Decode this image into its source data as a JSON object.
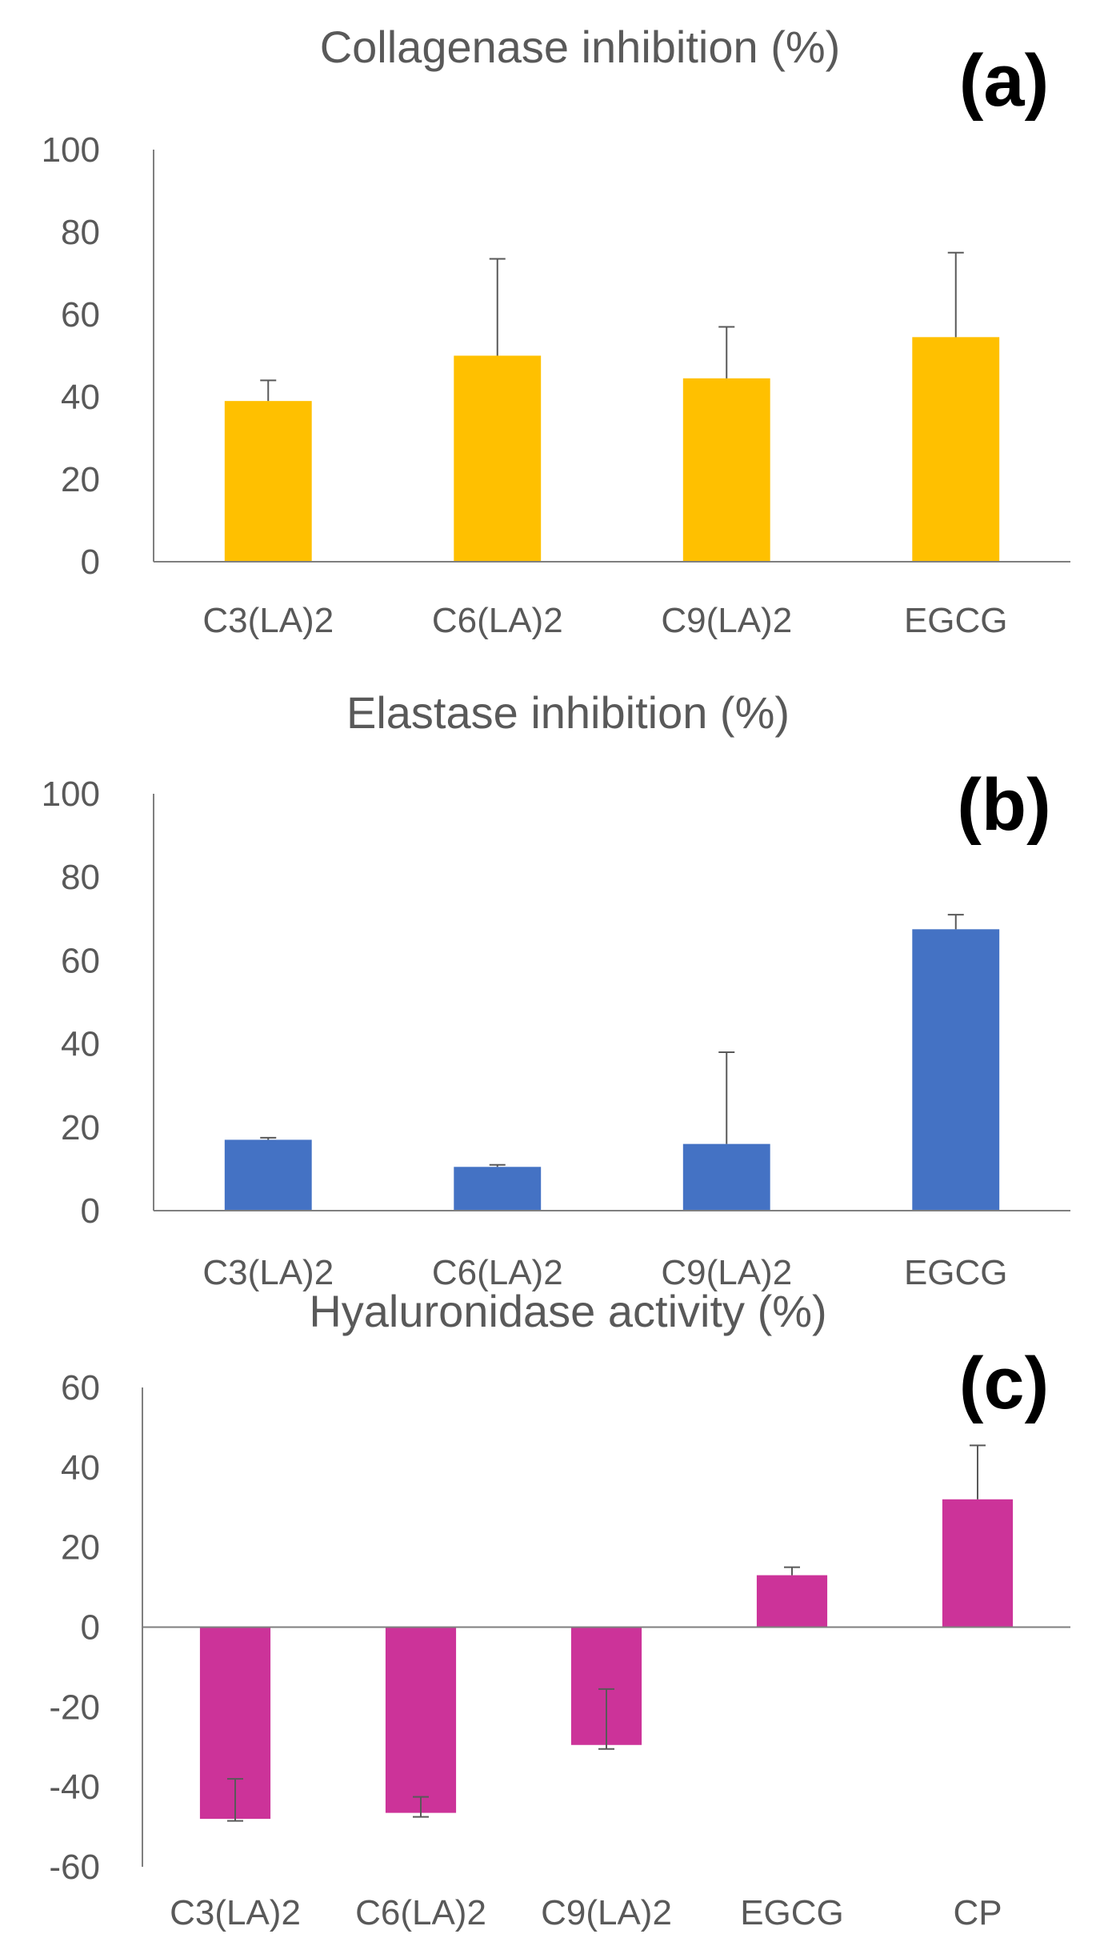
{
  "chart_data": [
    {
      "type": "bar",
      "panel_label": "(a)",
      "title": "Collagenase inhibition (%)",
      "xlabel": "",
      "ylabel": "",
      "categories": [
        "C3(LA)2",
        "C6(LA)2",
        "C9(LA)2",
        "EGCG"
      ],
      "values": [
        39,
        50,
        44.5,
        54.5
      ],
      "error_upper": [
        44,
        73.5,
        57,
        75
      ],
      "error_lower": [
        39,
        50,
        44.5,
        54.5
      ],
      "yticks": [
        "0",
        "20",
        "40",
        "60",
        "80",
        "100"
      ],
      "ylim": [
        0,
        100
      ],
      "color": "#FFC000",
      "grid": false
    },
    {
      "type": "bar",
      "panel_label": "(b)",
      "title": "Elastase inhibition (%)",
      "xlabel": "",
      "ylabel": "",
      "categories": [
        "C3(LA)2",
        "C6(LA)2",
        "C9(LA)2",
        "EGCG"
      ],
      "values": [
        17,
        10.5,
        16,
        67.5
      ],
      "error_upper": [
        17.5,
        11,
        38,
        71
      ],
      "error_lower": [
        17,
        10.5,
        16,
        67.5
      ],
      "yticks": [
        "0",
        "20",
        "40",
        "60",
        "80",
        "100"
      ],
      "ylim": [
        0,
        100
      ],
      "color": "#4472C4",
      "grid": false
    },
    {
      "type": "bar",
      "panel_label": "(c)",
      "title": "Hyaluronidase activity  (%)",
      "xlabel": "",
      "ylabel": "",
      "categories": [
        "C3(LA)2",
        "C6(LA)2",
        "C9(LA)2",
        "EGCG",
        "CP"
      ],
      "values": [
        -48,
        -46.5,
        -29.5,
        13,
        32
      ],
      "error_upper": [
        -38,
        -42.5,
        -15.5,
        15,
        45.5
      ],
      "error_lower": [
        -48.5,
        -47.5,
        -30.5,
        13,
        32
      ],
      "yticks": [
        "-60",
        "-40",
        "-20",
        "0",
        "20",
        "40",
        "60"
      ],
      "ylim": [
        -60,
        60
      ],
      "color": "#CC3399",
      "grid": false
    }
  ]
}
